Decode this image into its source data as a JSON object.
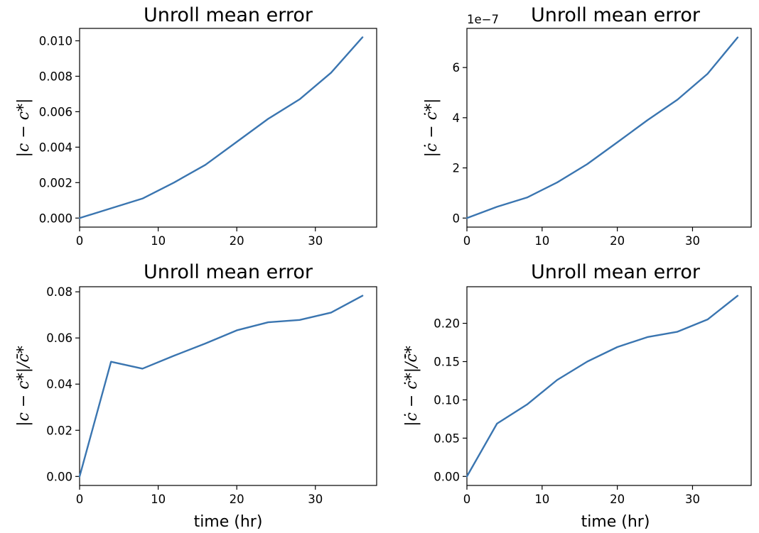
{
  "chart_data": [
    {
      "type": "line",
      "title": "Unroll mean error",
      "ylabel": "|c − c*|",
      "xlabel": "",
      "x": [
        0,
        4,
        8,
        12,
        16,
        20,
        24,
        28,
        32,
        36
      ],
      "series": [
        {
          "values": [
            0.0,
            0.00055,
            0.0011,
            0.002,
            0.003,
            0.0043,
            0.0056,
            0.0067,
            0.0082,
            0.0102
          ]
        }
      ],
      "xlim": [
        0,
        37.8
      ],
      "ylim": [
        -0.00051,
        0.0107
      ],
      "xticks": [
        0,
        10,
        20,
        30
      ],
      "xtick_labels": [
        "0",
        "10",
        "20",
        "30"
      ],
      "yticks": [
        0.0,
        0.002,
        0.004,
        0.006,
        0.008,
        0.01
      ],
      "ytick_labels": [
        "0.000",
        "0.002",
        "0.004",
        "0.006",
        "0.008",
        "0.010"
      ],
      "offset_text": "",
      "color": "#3a75b0"
    },
    {
      "type": "line",
      "title": "Unroll mean error",
      "ylabel": "|ċ − ċ*|",
      "xlabel": "",
      "x": [
        0,
        4,
        8,
        12,
        16,
        20,
        24,
        28,
        32,
        36
      ],
      "series": [
        {
          "values": [
            0.0,
            0.45,
            0.82,
            1.42,
            2.15,
            3.02,
            3.9,
            4.72,
            5.75,
            7.2
          ]
        }
      ],
      "xlim": [
        0,
        37.8
      ],
      "ylim": [
        -0.36,
        7.56
      ],
      "xticks": [
        0,
        10,
        20,
        30
      ],
      "xtick_labels": [
        "0",
        "10",
        "20",
        "30"
      ],
      "yticks": [
        0,
        2,
        4,
        6
      ],
      "ytick_labels": [
        "0",
        "2",
        "4",
        "6"
      ],
      "offset_text": "1e−7",
      "color": "#3a75b0"
    },
    {
      "type": "line",
      "title": "Unroll mean error",
      "ylabel": "|c − c*|/c̄*",
      "xlabel": "time (hr)",
      "x": [
        0,
        4,
        8,
        12,
        16,
        20,
        24,
        28,
        32,
        36
      ],
      "series": [
        {
          "values": [
            0.0,
            0.0497,
            0.0467,
            0.0523,
            0.0576,
            0.0633,
            0.0668,
            0.0678,
            0.071,
            0.0783
          ]
        }
      ],
      "xlim": [
        0,
        37.8
      ],
      "ylim": [
        -0.0039,
        0.0822
      ],
      "xticks": [
        0,
        10,
        20,
        30
      ],
      "xtick_labels": [
        "0",
        "10",
        "20",
        "30"
      ],
      "yticks": [
        0.0,
        0.02,
        0.04,
        0.06,
        0.08
      ],
      "ytick_labels": [
        "0.00",
        "0.02",
        "0.04",
        "0.06",
        "0.08"
      ],
      "offset_text": "",
      "color": "#3a75b0"
    },
    {
      "type": "line",
      "title": "Unroll mean error",
      "ylabel": "|ċ − ċ*|/c̄̇*",
      "xlabel": "time (hr)",
      "x": [
        0,
        4,
        8,
        12,
        16,
        20,
        24,
        28,
        32,
        36
      ],
      "series": [
        {
          "values": [
            0.0,
            0.069,
            0.094,
            0.126,
            0.15,
            0.169,
            0.182,
            0.189,
            0.205,
            0.236
          ]
        }
      ],
      "xlim": [
        0,
        37.8
      ],
      "ylim": [
        -0.0118,
        0.2478
      ],
      "xticks": [
        0,
        10,
        20,
        30
      ],
      "xtick_labels": [
        "0",
        "10",
        "20",
        "30"
      ],
      "yticks": [
        0.0,
        0.05,
        0.1,
        0.15,
        0.2
      ],
      "ytick_labels": [
        "0.00",
        "0.05",
        "0.10",
        "0.15",
        "0.20"
      ],
      "offset_text": "",
      "color": "#3a75b0"
    }
  ]
}
